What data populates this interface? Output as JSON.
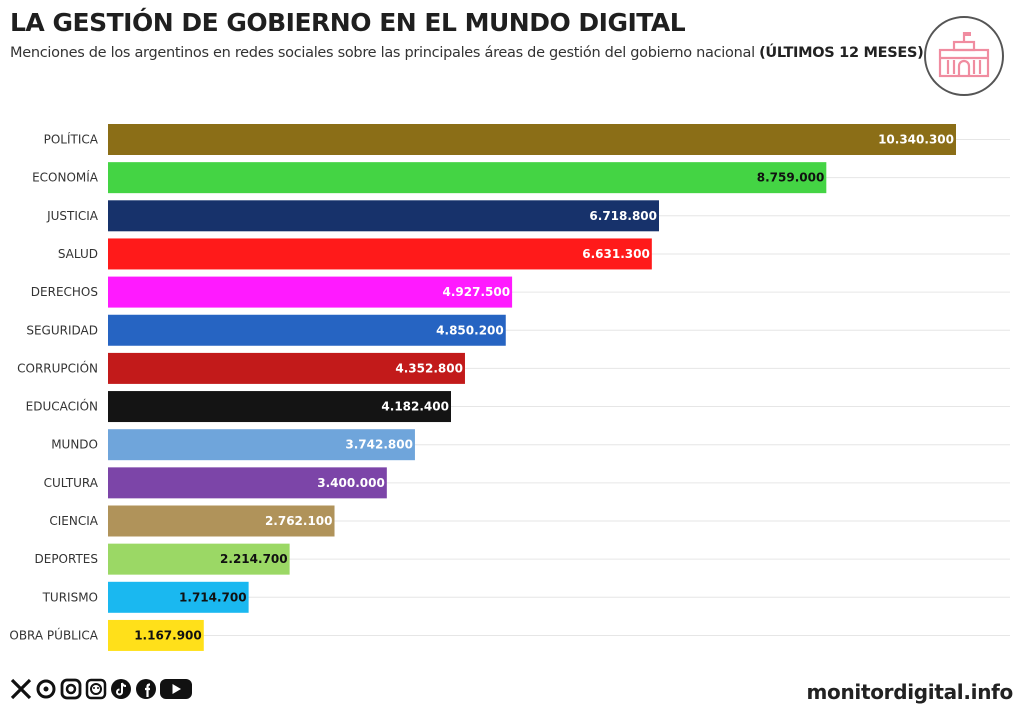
{
  "header": {
    "title": "LA GESTIÓN DE GOBIERNO EN EL MUNDO DIGITAL",
    "subtitle_main": "Menciones de los argentinos en redes sociales sobre las principales áreas de gestión del gobierno nacional ",
    "subtitle_bold": "(ÚLTIMOS 12 MESES)"
  },
  "logo_icon": "casa-rosada-icon",
  "chart_data": {
    "type": "bar",
    "orientation": "horizontal",
    "categories": [
      "POLÍTICA",
      "ECONOMÍA",
      "JUSTICIA",
      "SALUD",
      "DERECHOS",
      "SEGURIDAD",
      "CORRUPCIÓN",
      "EDUCACIÓN",
      "MUNDO",
      "CULTURA",
      "CIENCIA",
      "DEPORTES",
      "TURISMO",
      "OBRA PÚBLICA"
    ],
    "values": [
      10340300,
      8759000,
      6718800,
      6631300,
      4927500,
      4850200,
      4352800,
      4182400,
      3742800,
      3400000,
      2762100,
      2214700,
      1714700,
      1167900
    ],
    "value_labels": [
      "10.340.300",
      "8.759.000",
      "6.718.800",
      "6.631.300",
      "4.927.500",
      "4.850.200",
      "4.352.800",
      "4.182.400",
      "3.742.800",
      "3.400.000",
      "2.762.100",
      "2.214.700",
      "1.714.700",
      "1.167.900"
    ],
    "colors": [
      "#8B6E17",
      "#44D444",
      "#17326B",
      "#FF1A1A",
      "#FF1AFF",
      "#2664C2",
      "#C21A1A",
      "#141414",
      "#6FA5DB",
      "#7C45A8",
      "#B0935A",
      "#9BD865",
      "#1AB8F0",
      "#FFE01A"
    ],
    "label_colors": [
      "#ffffff",
      "#111111",
      "#ffffff",
      "#ffffff",
      "#ffffff",
      "#ffffff",
      "#ffffff",
      "#ffffff",
      "#ffffff",
      "#ffffff",
      "#ffffff",
      "#111111",
      "#111111",
      "#111111"
    ],
    "grid": true
  },
  "footer": {
    "social_icons": [
      "x-icon",
      "threads-icon",
      "instagram-icon",
      "sticker-icon",
      "tiktok-icon",
      "facebook-icon",
      "youtube-icon"
    ],
    "site": "monitordigital.info"
  }
}
